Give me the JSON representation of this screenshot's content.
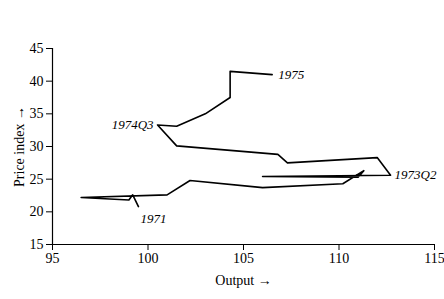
{
  "chart_data": {
    "type": "line",
    "x_label": "Output",
    "y_label": "Price index",
    "x": [
      99.5,
      99.2,
      99.0,
      96.5,
      101.0,
      102.2,
      106.0,
      110.2,
      111.3,
      111.0,
      106.0,
      112.7,
      112.0,
      107.3,
      106.8,
      101.5,
      100.5,
      101.5,
      103.0,
      104.3,
      104.3,
      106.5
    ],
    "values": [
      20.8,
      22.6,
      21.8,
      22.2,
      22.6,
      24.8,
      23.7,
      24.3,
      26.3,
      25.3,
      25.4,
      25.6,
      28.3,
      27.5,
      28.8,
      30.1,
      33.3,
      33.1,
      35.0,
      37.5,
      41.5,
      41.0
    ],
    "color": "#000000",
    "xlim": [
      95,
      115
    ],
    "xticks": [
      95,
      100,
      105,
      110,
      115
    ],
    "ylim": [
      15,
      45
    ],
    "yticks": [
      15,
      20,
      25,
      30,
      35,
      40,
      45
    ],
    "grid": false,
    "annotations": [
      {
        "text": "1971",
        "x": 99.5,
        "y": 20.8
      },
      {
        "text": "1973Q2",
        "x": 112.7,
        "y": 25.6
      },
      {
        "text": "1974Q3",
        "x": 100.5,
        "y": 33.3
      },
      {
        "text": "1975",
        "x": 106.5,
        "y": 41.0
      }
    ]
  }
}
